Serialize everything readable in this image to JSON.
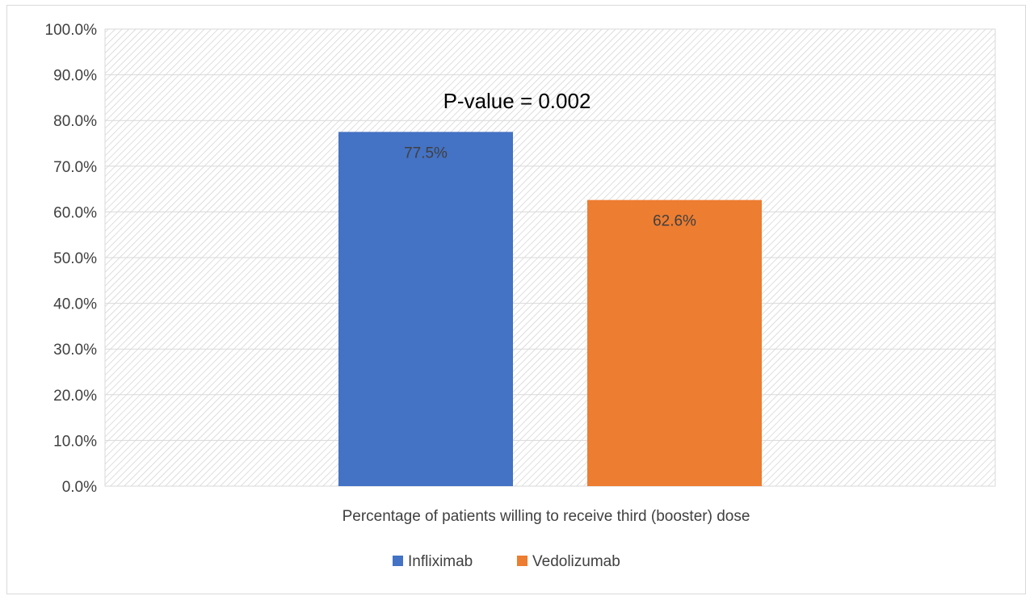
{
  "chart_data": {
    "type": "bar",
    "title": "",
    "categories": [
      "Percentage of patients willing to receive third (booster) dose"
    ],
    "series": [
      {
        "name": "Infliximab",
        "values": [
          77.5
        ],
        "color": "#4472c4",
        "label": "77.5%"
      },
      {
        "name": "Vedolizumab",
        "values": [
          62.6
        ],
        "color": "#ed7d31",
        "label": "62.6%"
      }
    ],
    "ylim": [
      0,
      100
    ],
    "yticks": [
      "0.0%",
      "10.0%",
      "20.0%",
      "30.0%",
      "40.0%",
      "50.0%",
      "60.0%",
      "70.0%",
      "80.0%",
      "90.0%",
      "100.0%"
    ],
    "annotation": "P-value = 0.002",
    "legend_position": "bottom",
    "grid": true,
    "plot_background": "diagonal-hatch"
  }
}
